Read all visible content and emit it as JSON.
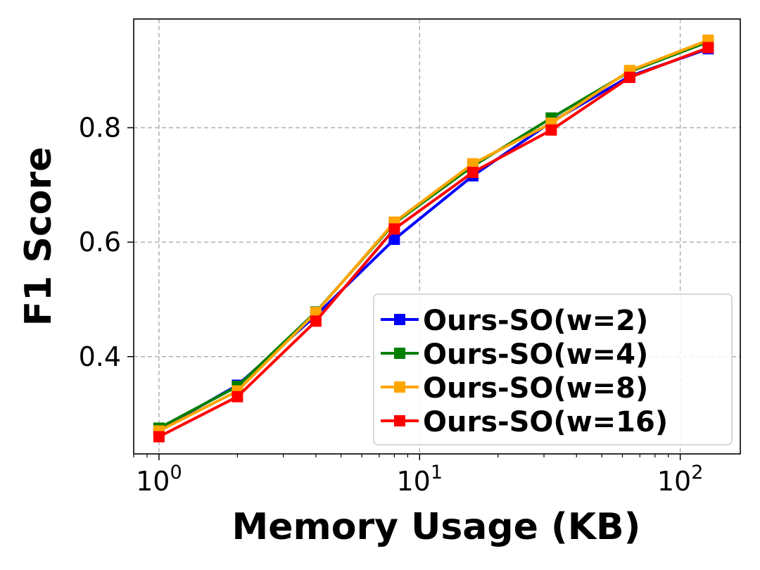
{
  "chart_data": {
    "type": "line",
    "xlabel": "Memory Usage (KB)",
    "ylabel": "F1 Score",
    "x_scale": "log",
    "x": [
      1,
      2,
      4,
      8,
      16,
      32,
      64,
      128
    ],
    "xlim": [
      0.8,
      170
    ],
    "ylim": [
      0.23,
      0.99
    ],
    "xticks": [
      {
        "value": 1,
        "base": "10",
        "exp": "0"
      },
      {
        "value": 10,
        "base": "10",
        "exp": "1"
      },
      {
        "value": 100,
        "base": "10",
        "exp": "2"
      }
    ],
    "yticks": [
      {
        "value": 0.4,
        "label": "0.4"
      },
      {
        "value": 0.6,
        "label": "0.6"
      },
      {
        "value": 0.8,
        "label": "0.8"
      }
    ],
    "grid": true,
    "legend_position": "lower-right",
    "series": [
      {
        "name": "Ours-SO(w=2)",
        "color": "#0000ff",
        "marker": "square",
        "values": [
          0.272,
          0.35,
          0.472,
          0.605,
          0.716,
          0.81,
          0.89,
          0.938
        ]
      },
      {
        "name": "Ours-SO(w=4)",
        "color": "#008000",
        "marker": "square",
        "values": [
          0.275,
          0.348,
          0.478,
          0.633,
          0.733,
          0.817,
          0.898,
          0.95
        ]
      },
      {
        "name": "Ours-SO(w=8)",
        "color": "#ffa500",
        "marker": "square",
        "values": [
          0.27,
          0.34,
          0.477,
          0.635,
          0.737,
          0.808,
          0.9,
          0.953
        ]
      },
      {
        "name": "Ours-SO(w=16)",
        "color": "#ff0000",
        "marker": "square",
        "values": [
          0.26,
          0.33,
          0.462,
          0.623,
          0.722,
          0.796,
          0.888,
          0.94
        ]
      }
    ]
  }
}
